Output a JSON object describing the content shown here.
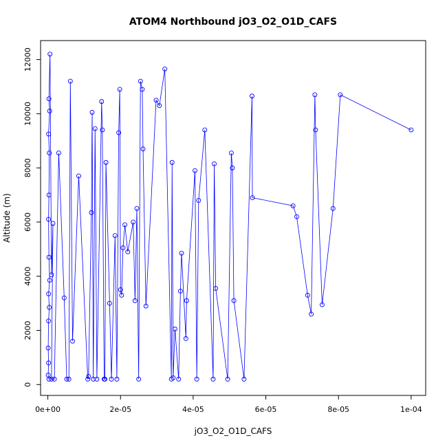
{
  "chart_data": {
    "type": "line",
    "title": "ATOM4 Northbound jO3_O2_O1D_CAFS",
    "xlabel": "jO3_O2_O1D_CAFS",
    "ylabel": "Altitude (m)",
    "xlim": [
      -2e-06,
      0.000104
    ],
    "ylim": [
      -400,
      12700
    ],
    "xticks": [
      0,
      2e-05,
      4e-05,
      6e-05,
      8e-05,
      0.0001
    ],
    "xtick_labels": [
      "0e+00",
      "2e-05",
      "4e-05",
      "6e-05",
      "8e-05",
      "1e-04"
    ],
    "yticks": [
      0,
      2000,
      4000,
      6000,
      8000,
      10000,
      12000
    ],
    "ytick_labels": [
      "0",
      "2000",
      "4000",
      "6000",
      "8000",
      "10000",
      "12000"
    ],
    "grid": false,
    "series": [
      {
        "color": "#0000ff",
        "marker": "open-circle",
        "points": [
          [
            3e-07,
            200
          ],
          [
            1e-07,
            350
          ],
          [
            2e-07,
            800
          ],
          [
            1e-07,
            1350
          ],
          [
            2e-07,
            2350
          ],
          [
            4e-07,
            2850
          ],
          [
            2e-07,
            3350
          ],
          [
            5e-07,
            3850
          ],
          [
            3e-07,
            4700
          ],
          [
            2e-07,
            6100
          ],
          [
            3e-07,
            7000
          ],
          [
            4e-07,
            8550
          ],
          [
            2e-07,
            9250
          ],
          [
            5e-07,
            10100
          ],
          [
            3e-07,
            10550
          ],
          [
            6e-07,
            12200
          ],
          [
            1e-06,
            4050
          ],
          [
            1.4e-06,
            5950
          ],
          [
            1e-06,
            200
          ],
          [
            1.8e-06,
            200
          ],
          [
            3e-06,
            8550
          ],
          [
            4.5e-06,
            3200
          ],
          [
            5.2e-06,
            200
          ],
          [
            5.8e-06,
            200
          ],
          [
            6.2e-06,
            11200
          ],
          [
            6.8e-06,
            1600
          ],
          [
            8.5e-06,
            7700
          ],
          [
            1.1e-05,
            200
          ],
          [
            1.12e-05,
            300
          ],
          [
            1.2e-05,
            6350
          ],
          [
            1.22e-05,
            10050
          ],
          [
            1.25e-05,
            200
          ],
          [
            1.3e-05,
            9450
          ],
          [
            1.35e-05,
            200
          ],
          [
            1.48e-05,
            10450
          ],
          [
            1.5e-05,
            9400
          ],
          [
            1.55e-05,
            200
          ],
          [
            1.57e-05,
            200
          ],
          [
            1.6e-05,
            8200
          ],
          [
            1.7e-05,
            3000
          ],
          [
            1.75e-05,
            200
          ],
          [
            1.85e-05,
            5500
          ],
          [
            1.9e-05,
            200
          ],
          [
            1.95e-05,
            9300
          ],
          [
            1.98e-05,
            10900
          ],
          [
            2e-05,
            3500
          ],
          [
            2.03e-05,
            3300
          ],
          [
            2.07e-05,
            5050
          ],
          [
            2.12e-05,
            5900
          ],
          [
            2.2e-05,
            4900
          ],
          [
            2.35e-05,
            6000
          ],
          [
            2.4e-05,
            3100
          ],
          [
            2.45e-05,
            6500
          ],
          [
            2.5e-05,
            200
          ],
          [
            2.55e-05,
            11200
          ],
          [
            2.6e-05,
            10900
          ],
          [
            2.62e-05,
            8700
          ],
          [
            2.7e-05,
            2900
          ],
          [
            2.98e-05,
            10500
          ],
          [
            3.07e-05,
            10300
          ],
          [
            3.22e-05,
            11650
          ],
          [
            3.4e-05,
            200
          ],
          [
            3.42e-05,
            8200
          ],
          [
            3.45e-05,
            250
          ],
          [
            3.5e-05,
            2050
          ],
          [
            3.6e-05,
            200
          ],
          [
            3.65e-05,
            3450
          ],
          [
            3.68e-05,
            4850
          ],
          [
            3.8e-05,
            1700
          ],
          [
            3.82e-05,
            3100
          ],
          [
            4.05e-05,
            7900
          ],
          [
            4.1e-05,
            200
          ],
          [
            4.15e-05,
            6800
          ],
          [
            4.32e-05,
            9400
          ],
          [
            4.55e-05,
            200
          ],
          [
            4.58e-05,
            8150
          ],
          [
            4.62e-05,
            3550
          ],
          [
            4.95e-05,
            200
          ],
          [
            5.05e-05,
            8550
          ],
          [
            5.08e-05,
            8000
          ],
          [
            5.12e-05,
            3100
          ],
          [
            5.4e-05,
            200
          ],
          [
            5.62e-05,
            10650
          ],
          [
            5.63e-05,
            6900
          ],
          [
            6.75e-05,
            6600
          ],
          [
            6.85e-05,
            6200
          ],
          [
            7.15e-05,
            3300
          ],
          [
            7.25e-05,
            2600
          ],
          [
            7.35e-05,
            10700
          ],
          [
            7.37e-05,
            9400
          ],
          [
            7.55e-05,
            2950
          ],
          [
            7.85e-05,
            6500
          ],
          [
            8.05e-05,
            10700
          ],
          [
            0.0001,
            9400
          ]
        ]
      }
    ]
  }
}
